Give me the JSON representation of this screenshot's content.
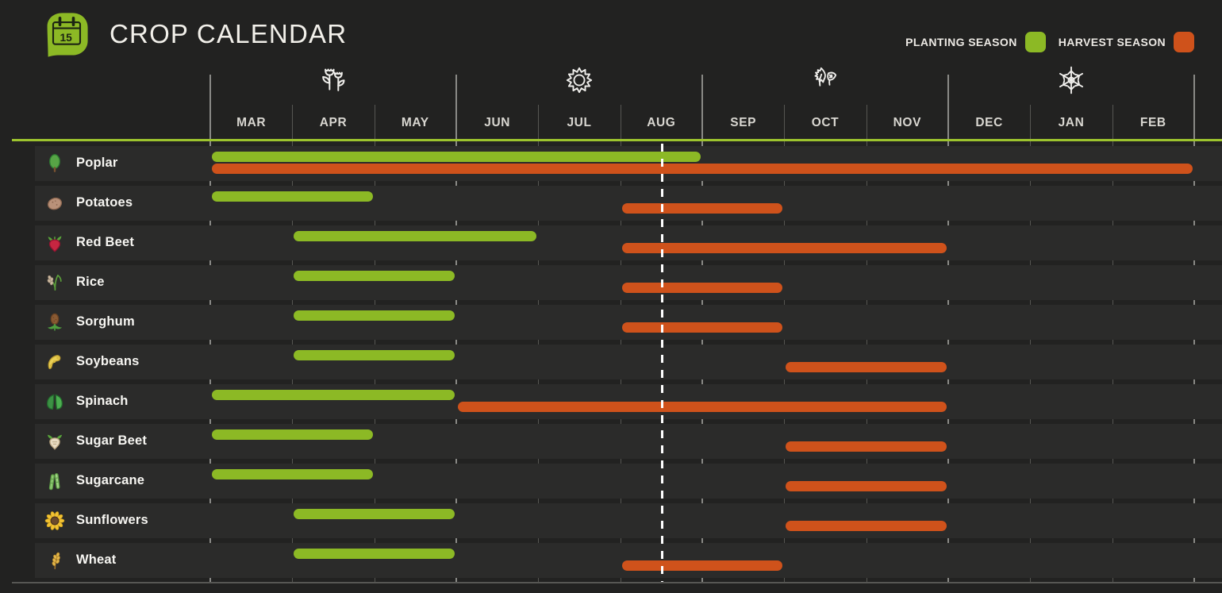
{
  "header": {
    "title": "CROP CALENDAR",
    "logo": {
      "icon": "calendar-icon",
      "day": "15"
    },
    "legend": [
      {
        "key": "planting",
        "label": "PLANTING SEASON",
        "color": "#8cb925"
      },
      {
        "key": "harvest",
        "label": "HARVEST SEASON",
        "color": "#cf521b"
      }
    ]
  },
  "timeline": {
    "months": [
      "MAR",
      "APR",
      "MAY",
      "JUN",
      "JUL",
      "AUG",
      "SEP",
      "OCT",
      "NOV",
      "DEC",
      "JAN",
      "FEB"
    ],
    "seasons": [
      {
        "name": "spring",
        "icon": "spring-flowers-icon",
        "over_month": "APR"
      },
      {
        "name": "summer",
        "icon": "summer-sun-icon",
        "over_month": "JUL"
      },
      {
        "name": "autumn",
        "icon": "autumn-leaves-icon",
        "over_month": "OCT"
      },
      {
        "name": "winter",
        "icon": "winter-snowflake-icon",
        "over_month": "JAN"
      }
    ],
    "today_marker": {
      "month": "AUG",
      "position_within_month": 0.5
    }
  },
  "chart_data": {
    "type": "bar",
    "subtype": "gantt-crop-calendar",
    "title": "CROP CALENDAR",
    "x_categories": [
      "MAR",
      "APR",
      "MAY",
      "JUN",
      "JUL",
      "AUG",
      "SEP",
      "OCT",
      "NOV",
      "DEC",
      "JAN",
      "FEB"
    ],
    "legend_entries": [
      "PLANTING SEASON",
      "HARVEST SEASON"
    ],
    "colors": {
      "planting": "#8cb925",
      "harvest": "#cf521b"
    },
    "rows": [
      {
        "crop": "Poplar",
        "icon": "poplar-icon",
        "planting": {
          "start": "MAR",
          "end": "AUG"
        },
        "harvest": {
          "start": "MAR",
          "end": "FEB"
        }
      },
      {
        "crop": "Potatoes",
        "icon": "potatoes-icon",
        "planting": {
          "start": "MAR",
          "end": "APR"
        },
        "harvest": {
          "start": "AUG",
          "end": "SEP"
        }
      },
      {
        "crop": "Red Beet",
        "icon": "red-beet-icon",
        "planting": {
          "start": "APR",
          "end": "JUN"
        },
        "harvest": {
          "start": "AUG",
          "end": "NOV"
        }
      },
      {
        "crop": "Rice",
        "icon": "rice-icon",
        "planting": {
          "start": "APR",
          "end": "MAY"
        },
        "harvest": {
          "start": "AUG",
          "end": "SEP"
        }
      },
      {
        "crop": "Sorghum",
        "icon": "sorghum-icon",
        "planting": {
          "start": "APR",
          "end": "MAY"
        },
        "harvest": {
          "start": "AUG",
          "end": "SEP"
        }
      },
      {
        "crop": "Soybeans",
        "icon": "soybeans-icon",
        "planting": {
          "start": "APR",
          "end": "MAY"
        },
        "harvest": {
          "start": "OCT",
          "end": "NOV"
        }
      },
      {
        "crop": "Spinach",
        "icon": "spinach-icon",
        "planting": {
          "start": "MAR",
          "end": "MAY"
        },
        "harvest": {
          "start": "JUN",
          "end": "NOV"
        }
      },
      {
        "crop": "Sugar Beet",
        "icon": "sugar-beet-icon",
        "planting": {
          "start": "MAR",
          "end": "APR"
        },
        "harvest": {
          "start": "OCT",
          "end": "NOV"
        }
      },
      {
        "crop": "Sugarcane",
        "icon": "sugarcane-icon",
        "planting": {
          "start": "MAR",
          "end": "APR"
        },
        "harvest": {
          "start": "OCT",
          "end": "NOV"
        }
      },
      {
        "crop": "Sunflowers",
        "icon": "sunflowers-icon",
        "planting": {
          "start": "APR",
          "end": "MAY"
        },
        "harvest": {
          "start": "OCT",
          "end": "NOV"
        }
      },
      {
        "crop": "Wheat",
        "icon": "wheat-icon",
        "planting": {
          "start": "APR",
          "end": "MAY"
        },
        "harvest": {
          "start": "AUG",
          "end": "SEP"
        }
      }
    ]
  }
}
